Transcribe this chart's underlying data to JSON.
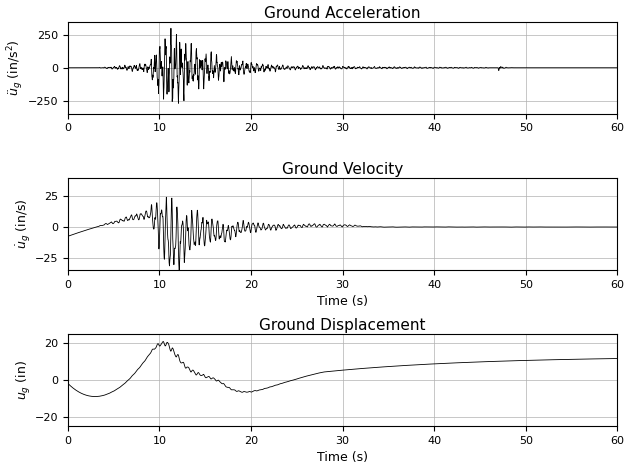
{
  "title_accel": "Ground Acceleration",
  "title_vel": "Ground Velocity",
  "title_disp": "Ground Displacement",
  "ylabel_accel": "$\\ddot{u}_g$ (in/s$^2$)",
  "ylabel_vel": "$\\dot{u}_g$ (in/s)",
  "ylabel_disp": "$u_g$ (in)",
  "xlabel": "Time (s)",
  "xlim": [
    0,
    60
  ],
  "ylim_accel": [
    -350,
    350
  ],
  "ylim_vel": [
    -35,
    40
  ],
  "ylim_disp": [
    -25,
    25
  ],
  "yticks_accel": [
    -250,
    0,
    250
  ],
  "yticks_vel": [
    -25,
    0,
    25
  ],
  "yticks_disp": [
    -20,
    0,
    20
  ],
  "xticks": [
    0,
    10,
    20,
    30,
    40,
    50,
    60
  ],
  "dt": 0.02,
  "duration": 60.0,
  "grid_color": "#b0b0b0",
  "line_color": "#000000",
  "line_width": 0.6,
  "background_color": "#ffffff",
  "fig_width": 6.3,
  "fig_height": 4.7,
  "title_fontsize": 11,
  "label_fontsize": 9,
  "tick_fontsize": 8
}
